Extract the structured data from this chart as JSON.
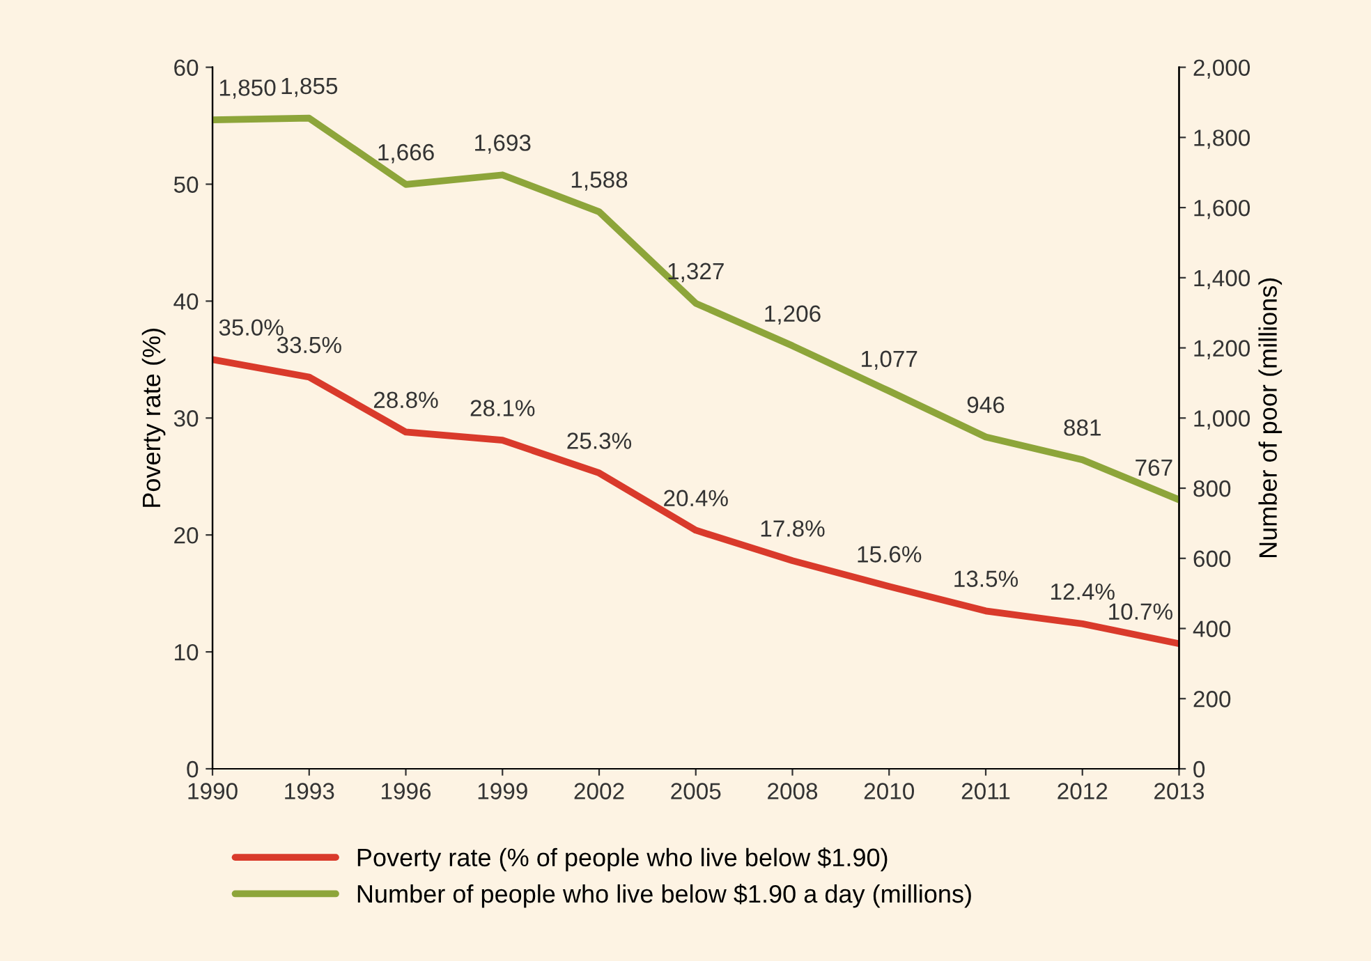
{
  "chart_data": {
    "type": "line",
    "ylabel": "Poverty rate (%)",
    "y2label": "Number of poor (millions)",
    "categories": [
      "1990",
      "1993",
      "1996",
      "1999",
      "2002",
      "2005",
      "2008",
      "2010",
      "2011",
      "2012",
      "2013"
    ],
    "series": [
      {
        "name": "Poverty rate (% of people who live below $1.90)",
        "color": "#d93a2b",
        "values": [
          35.0,
          33.5,
          28.8,
          28.1,
          25.3,
          20.4,
          17.8,
          15.6,
          13.5,
          12.4,
          10.7
        ],
        "value_labels": [
          "35.0%",
          "33.5%",
          "28.8%",
          "28.1%",
          "25.3%",
          "20.4%",
          "17.8%",
          "15.6%",
          "13.5%",
          "12.4%",
          "10.7%"
        ]
      },
      {
        "name": "Number of people who live below $1.90 a day (millions)",
        "color": "#8da53a",
        "axis": "y2",
        "values": [
          1850,
          1855,
          1666,
          1693,
          1588,
          1327,
          1206,
          1077,
          946,
          881,
          767
        ],
        "value_labels": [
          "1,850",
          "1,855",
          "1,666",
          "1,693",
          "1,588",
          "1,327",
          "1,206",
          "1,077",
          "946",
          "881",
          "767"
        ]
      }
    ],
    "ylim": [
      0,
      60
    ],
    "yticks": [
      0,
      10,
      20,
      30,
      40,
      50,
      60
    ],
    "y2lim": [
      0,
      2000
    ],
    "y2ticks": [
      0,
      {
        "value": 200,
        "label": "200"
      },
      {
        "value": 400,
        "label": "400"
      },
      {
        "value": 600,
        "label": "600"
      },
      {
        "value": 800,
        "label": "800"
      },
      {
        "value": 1000,
        "label": "1,000"
      },
      {
        "value": 1200,
        "label": "1,200"
      },
      {
        "value": 1400,
        "label": "1,400"
      },
      {
        "value": 1600,
        "label": "1,600"
      },
      {
        "value": 1800,
        "label": "1,800"
      },
      {
        "value": 2000,
        "label": "2,000"
      }
    ],
    "grid": false,
    "legend": "bottom",
    "marker": "none",
    "line_style": "solid"
  }
}
